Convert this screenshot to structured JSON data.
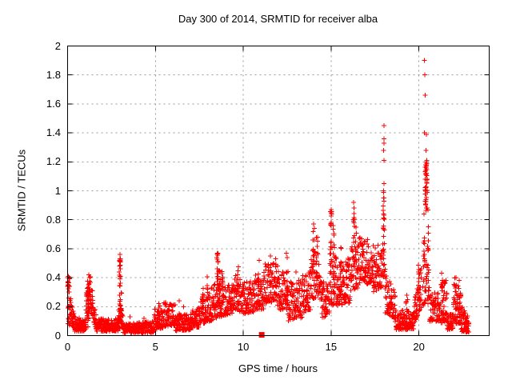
{
  "chart_data": {
    "type": "scatter",
    "title": "Day 300 of 2014, SRMTID for receiver alba",
    "xlabel": "GPS time / hours",
    "ylabel": "SRMTID / TECUs",
    "xlim": [
      0,
      24
    ],
    "ylim": [
      0,
      2
    ],
    "xticks": {
      "values": [
        0,
        5,
        10,
        15,
        20
      ],
      "labels": [
        "0",
        "5",
        "10",
        "15",
        "20"
      ]
    },
    "yticks": {
      "values": [
        0,
        0.2,
        0.4,
        0.6,
        0.8,
        1,
        1.2,
        1.4,
        1.6,
        1.8,
        2
      ],
      "labels": [
        "0",
        "0.2",
        "0.4",
        "0.6",
        "0.8",
        "1",
        "1.2",
        "1.4",
        "1.6",
        "1.8",
        "2"
      ]
    },
    "grid": {
      "on": true,
      "color": "#9a9a9a",
      "dash": "2 4"
    },
    "marker": {
      "shape": "plus",
      "color": "#ff0000",
      "size": 7
    },
    "border_color": "#000000",
    "legend": "none",
    "seed": 42,
    "bands": [
      [
        0.0,
        0.12,
        0.3,
        0.43,
        0.3,
        0.43,
        18
      ],
      [
        0.02,
        0.4,
        0.08,
        0.32,
        0.05,
        0.16,
        48
      ],
      [
        0.4,
        1.05,
        0.03,
        0.13,
        0.03,
        0.11,
        85
      ],
      [
        1.05,
        1.3,
        0.08,
        0.3,
        0.24,
        0.43,
        38
      ],
      [
        1.3,
        1.62,
        0.18,
        0.43,
        0.04,
        0.14,
        34
      ],
      [
        1.62,
        2.9,
        0.03,
        0.12,
        0.03,
        0.12,
        150
      ],
      [
        2.9,
        3.15,
        0.05,
        0.25,
        0.04,
        0.16,
        24
      ],
      [
        3.15,
        4.9,
        0.02,
        0.08,
        0.02,
        0.1,
        185
      ],
      [
        4.9,
        5.45,
        0.04,
        0.2,
        0.05,
        0.21,
        62
      ],
      [
        5.45,
        6.15,
        0.06,
        0.23,
        0.07,
        0.22,
        80
      ],
      [
        6.15,
        7.0,
        0.03,
        0.16,
        0.04,
        0.14,
        88
      ],
      [
        7.0,
        7.55,
        0.05,
        0.18,
        0.06,
        0.2,
        55
      ],
      [
        7.55,
        8.15,
        0.08,
        0.28,
        0.09,
        0.3,
        60
      ],
      [
        8.15,
        8.45,
        0.1,
        0.35,
        0.12,
        0.36,
        32
      ],
      [
        8.45,
        9.0,
        0.12,
        0.38,
        0.14,
        0.36,
        48
      ],
      [
        9.0,
        9.5,
        0.14,
        0.35,
        0.16,
        0.36,
        55
      ],
      [
        9.5,
        9.95,
        0.18,
        0.42,
        0.16,
        0.4,
        50
      ],
      [
        9.95,
        10.6,
        0.15,
        0.37,
        0.16,
        0.38,
        70
      ],
      [
        10.6,
        11.15,
        0.18,
        0.42,
        0.18,
        0.42,
        56
      ],
      [
        11.15,
        11.95,
        0.22,
        0.5,
        0.24,
        0.5,
        92
      ],
      [
        11.95,
        12.55,
        0.18,
        0.45,
        0.18,
        0.46,
        66
      ],
      [
        12.55,
        13.35,
        0.1,
        0.38,
        0.12,
        0.4,
        86
      ],
      [
        13.35,
        13.85,
        0.15,
        0.45,
        0.18,
        0.46,
        55
      ],
      [
        13.85,
        14.45,
        0.25,
        0.6,
        0.25,
        0.58,
        56
      ],
      [
        14.45,
        14.9,
        0.12,
        0.38,
        0.14,
        0.38,
        50
      ],
      [
        14.9,
        15.3,
        0.2,
        0.62,
        0.22,
        0.6,
        42
      ],
      [
        15.3,
        16.1,
        0.2,
        0.52,
        0.22,
        0.54,
        92
      ],
      [
        16.1,
        16.55,
        0.3,
        0.62,
        0.32,
        0.62,
        42
      ],
      [
        16.55,
        17.4,
        0.35,
        0.68,
        0.36,
        0.66,
        96
      ],
      [
        17.4,
        17.95,
        0.3,
        0.62,
        0.34,
        0.64,
        60
      ],
      [
        18.05,
        18.65,
        0.15,
        0.48,
        0.12,
        0.3,
        66
      ],
      [
        18.65,
        19.7,
        0.04,
        0.18,
        0.04,
        0.17,
        112
      ],
      [
        19.7,
        20.15,
        0.08,
        0.25,
        0.2,
        0.5,
        52
      ],
      [
        20.2,
        20.6,
        0.2,
        0.52,
        0.22,
        0.5,
        32
      ],
      [
        20.6,
        21.25,
        0.1,
        0.3,
        0.1,
        0.3,
        72
      ],
      [
        21.25,
        21.6,
        0.08,
        0.4,
        0.08,
        0.38,
        42
      ],
      [
        21.6,
        21.95,
        0.04,
        0.15,
        0.04,
        0.15,
        42
      ],
      [
        21.95,
        22.4,
        0.08,
        0.36,
        0.08,
        0.34,
        52
      ],
      [
        22.4,
        22.85,
        0.03,
        0.22,
        0.02,
        0.12,
        56
      ]
    ],
    "spikes": [
      [
        1.18,
        0.06,
        0.4,
        24
      ],
      [
        2.98,
        0.1,
        0.56,
        30
      ],
      [
        3.04,
        0.08,
        0.34,
        12
      ],
      [
        7.7,
        0.1,
        0.38,
        10
      ],
      [
        7.95,
        0.1,
        0.42,
        10
      ],
      [
        8.55,
        0.15,
        0.57,
        22
      ],
      [
        8.65,
        0.18,
        0.5,
        14
      ],
      [
        8.8,
        0.15,
        0.45,
        12
      ],
      [
        9.7,
        0.2,
        0.5,
        10
      ],
      [
        10.85,
        0.2,
        0.52,
        10
      ],
      [
        12.5,
        0.2,
        0.57,
        10
      ],
      [
        14.0,
        0.28,
        0.78,
        14
      ],
      [
        14.2,
        0.28,
        0.7,
        10
      ],
      [
        15.0,
        0.25,
        0.87,
        16
      ],
      [
        15.15,
        0.28,
        0.8,
        12
      ],
      [
        15.55,
        0.25,
        0.62,
        8
      ],
      [
        16.3,
        0.4,
        0.85,
        12
      ],
      [
        16.42,
        0.38,
        0.78,
        8
      ],
      [
        18.0,
        0.4,
        1.0,
        26
      ],
      [
        19.3,
        0.1,
        0.28,
        6
      ],
      [
        20.0,
        0.15,
        0.5,
        10
      ],
      [
        20.3,
        0.5,
        0.92,
        10
      ],
      [
        20.38,
        0.85,
        1.18,
        20
      ],
      [
        20.45,
        0.88,
        1.2,
        16
      ],
      [
        20.52,
        0.3,
        0.9,
        12
      ],
      [
        21.35,
        0.1,
        0.43,
        8
      ],
      [
        22.05,
        0.1,
        0.4,
        8
      ],
      [
        22.3,
        0.1,
        0.4,
        8
      ]
    ],
    "singles": [
      [
        18.0,
        1.45
      ],
      [
        18.0,
        1.36
      ],
      [
        18.02,
        1.33
      ],
      [
        17.98,
        1.28
      ],
      [
        18.0,
        1.21
      ],
      [
        18.01,
        1.05
      ],
      [
        17.99,
        1.0
      ],
      [
        18.0,
        0.95
      ],
      [
        20.32,
        1.9
      ],
      [
        20.33,
        1.8
      ],
      [
        20.35,
        1.66
      ],
      [
        20.3,
        1.4
      ],
      [
        20.42,
        1.39
      ],
      [
        20.4,
        1.28
      ],
      [
        20.44,
        1.21
      ],
      [
        20.47,
        1.08
      ],
      [
        16.28,
        0.92
      ],
      [
        16.3,
        0.88
      ],
      [
        16.25,
        0.8
      ],
      [
        15.0,
        0.87
      ],
      [
        15.02,
        0.84
      ],
      [
        14.0,
        0.77
      ],
      [
        14.05,
        0.74
      ],
      [
        8.55,
        0.57
      ],
      [
        8.5,
        0.54
      ],
      [
        2.98,
        0.56
      ],
      [
        2.97,
        0.52
      ],
      [
        11.55,
        0.55
      ],
      [
        11.85,
        0.53
      ],
      [
        12.45,
        0.57
      ],
      [
        12.5,
        0.54
      ],
      [
        10.9,
        0.52
      ],
      [
        13.0,
        0.44
      ],
      [
        1.2,
        0.42
      ],
      [
        1.25,
        0.4
      ],
      [
        0.0,
        0.4
      ],
      [
        0.03,
        0.37
      ],
      [
        3.55,
        0.13
      ],
      [
        4.35,
        0.12
      ],
      [
        5.2,
        0.22
      ],
      [
        6.35,
        0.24
      ],
      [
        6.6,
        0.2
      ],
      [
        19.3,
        0.28
      ],
      [
        19.35,
        0.25
      ],
      [
        21.3,
        0.43
      ],
      [
        22.1,
        0.4
      ],
      [
        22.3,
        0.38
      ]
    ],
    "square_points": [
      [
        11.05,
        0.005
      ]
    ]
  }
}
